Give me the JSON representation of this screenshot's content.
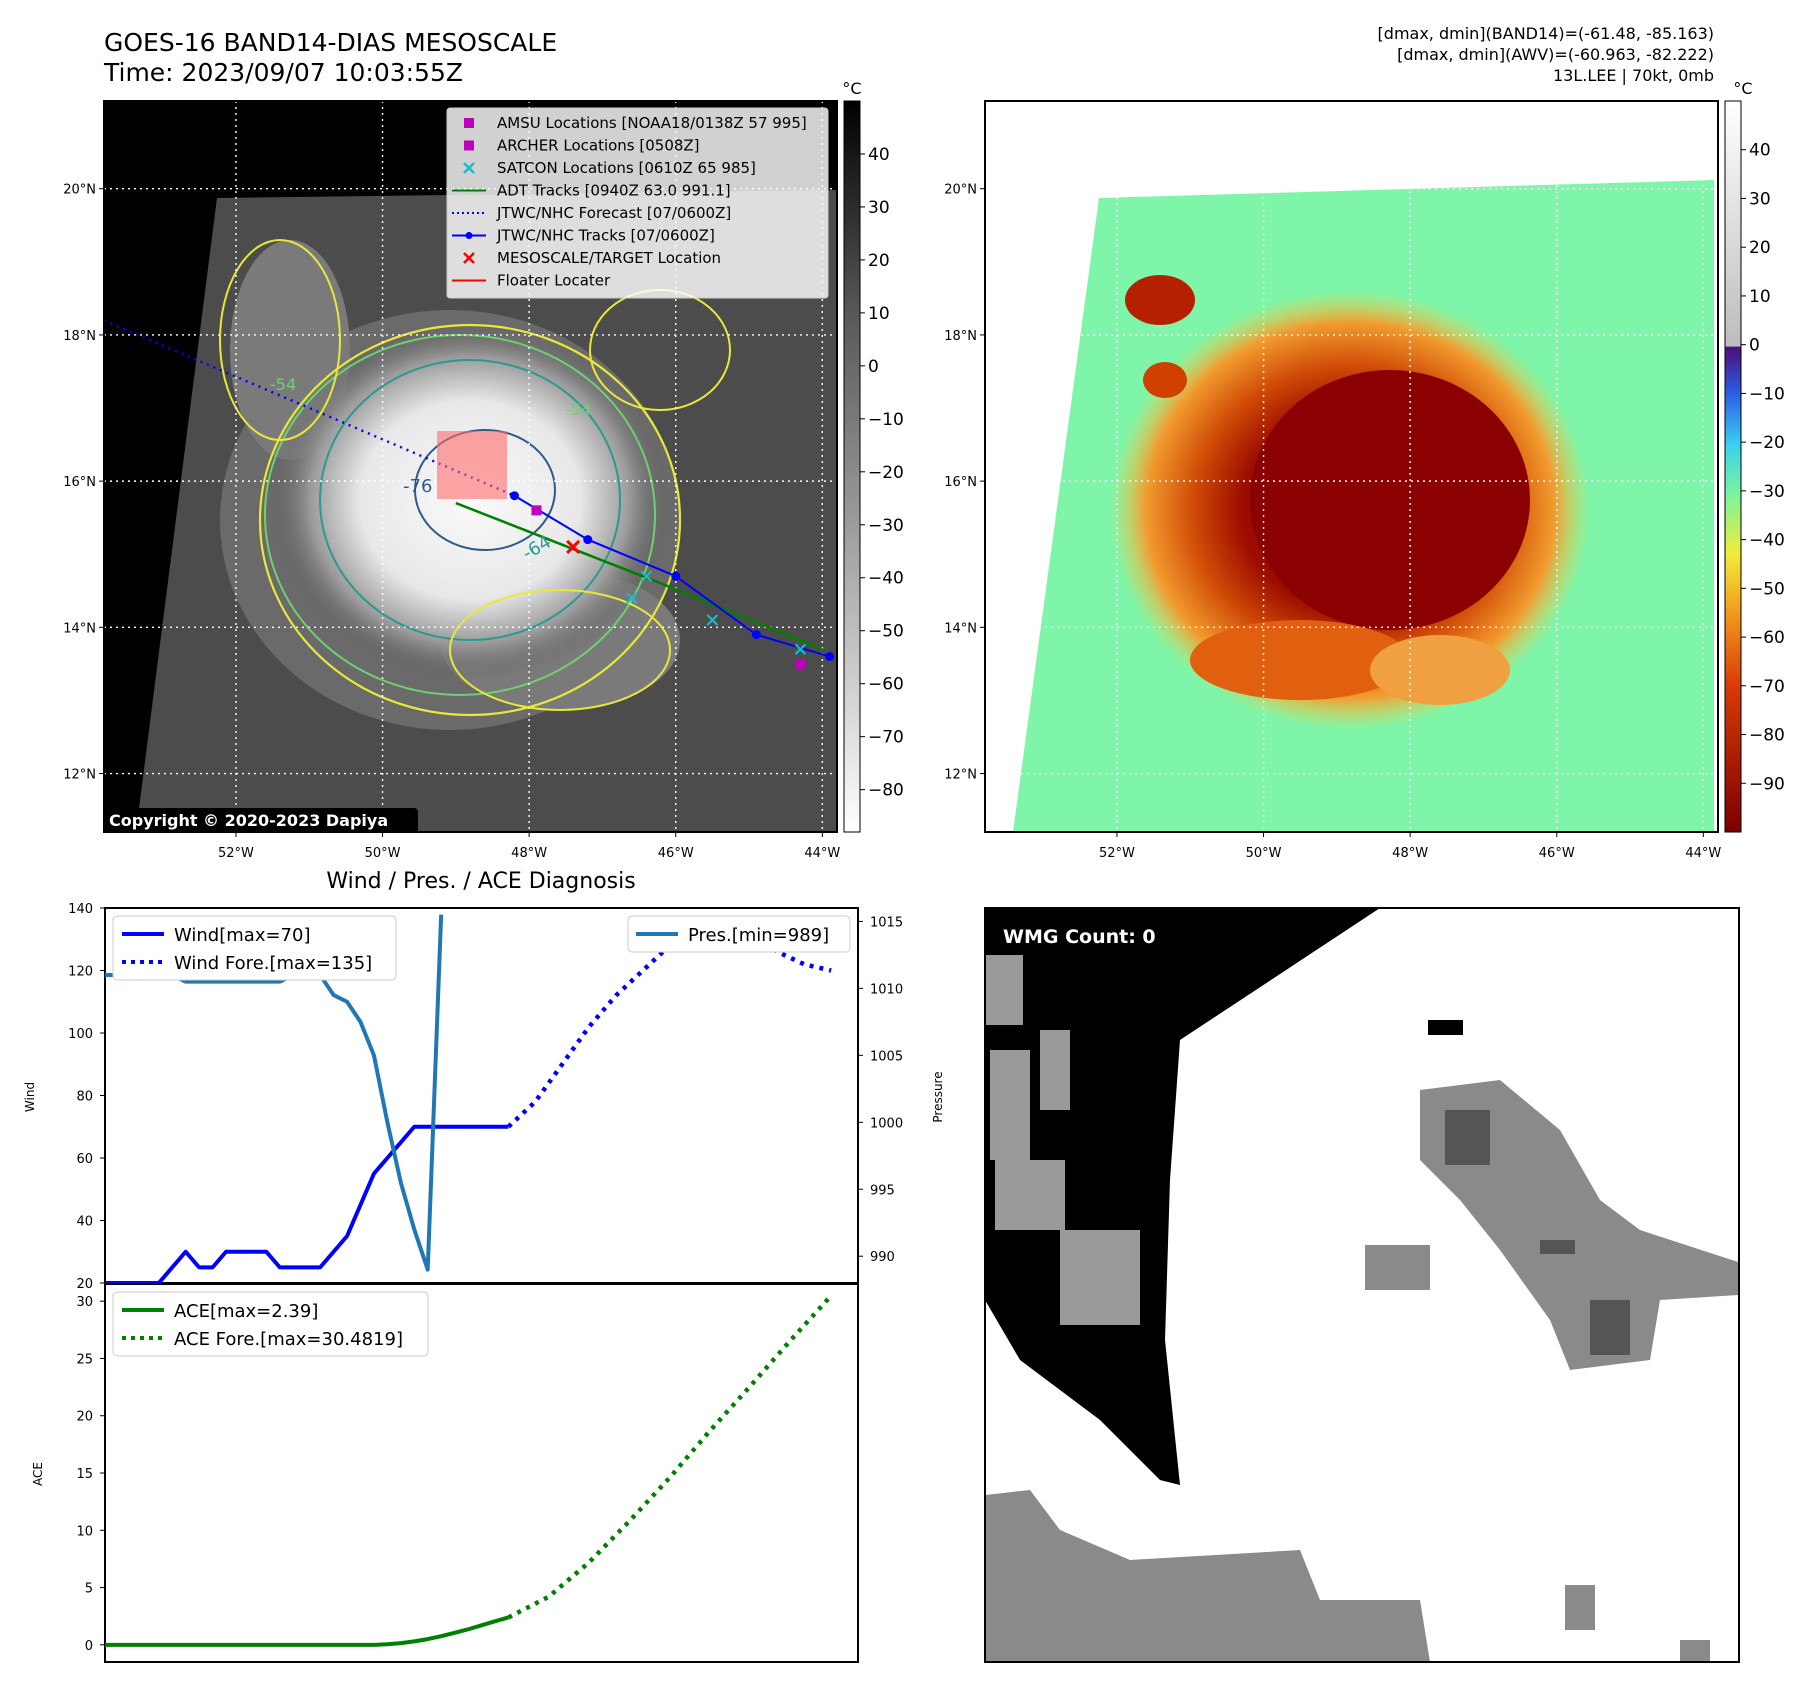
{
  "header": {
    "title": "GOES-16 BAND14-DIAS MESOSCALE",
    "time": "Time: 2023/09/07 10:03:55Z",
    "stats_band14": "[dmax, dmin](BAND14)=(-61.48, -85.163)",
    "stats_awv": "[dmax, dmin](AWV)=(-60.963, -82.222)",
    "storm": "13L.LEE | 70kt, 0mb",
    "copyright": "Copyright © 2020-2023 Dapiya"
  },
  "map": {
    "lon_labels": [
      "52°W",
      "50°W",
      "48°W",
      "46°W",
      "44°W"
    ],
    "lon_values": [
      -52,
      -50,
      -48,
      -46,
      -44
    ],
    "lat_labels": [
      "20°N",
      "18°N",
      "16°N",
      "14°N",
      "12°N"
    ],
    "lat_values": [
      20,
      18,
      16,
      14,
      12
    ],
    "extent": {
      "lon": [
        -53.8,
        -43.8
      ],
      "lat": [
        11.2,
        21.2
      ]
    },
    "contour_labels": [
      "-76",
      "-64",
      "-54",
      "-54"
    ],
    "legend": [
      {
        "label": "AMSU Locations [NOAA18/0138Z 57 995]",
        "color": "#bf00bf",
        "marker": "square"
      },
      {
        "label": "ARCHER Locations [0508Z]",
        "color": "#bf00bf",
        "marker": "square"
      },
      {
        "label": "SATCON Locations [0610Z 65 985]",
        "color": "#17becf",
        "marker": "x"
      },
      {
        "label": "ADT Tracks [0940Z 63.0 991.1]",
        "color": "#008000",
        "marker": "line"
      },
      {
        "label": "JTWC/NHC Forecast [07/0600Z]",
        "color": "#0000ff",
        "marker": "dotted"
      },
      {
        "label": "JTWC/NHC Tracks [07/0600Z]",
        "color": "#0000ff",
        "marker": "line-dot"
      },
      {
        "label": "MESOSCALE/TARGET Location",
        "color": "#ff0000",
        "marker": "x"
      },
      {
        "label": "Floater Locater",
        "color": "#ff0000",
        "marker": "line"
      }
    ],
    "forecast_track": [
      [
        -53.8,
        18.2
      ],
      [
        -48.2,
        15.8
      ]
    ],
    "jtwc_track": [
      [
        -48.2,
        15.8
      ],
      [
        -47.2,
        15.2
      ],
      [
        -46.0,
        14.7
      ],
      [
        -44.9,
        13.9
      ],
      [
        -43.9,
        13.6
      ]
    ],
    "adt_track": [
      [
        -49.0,
        15.7
      ],
      [
        -46.2,
        14.6
      ],
      [
        -44.0,
        13.7
      ]
    ],
    "satcon_points": [
      [
        -46.6,
        14.4
      ],
      [
        -46.4,
        14.7
      ],
      [
        -45.5,
        14.1
      ],
      [
        -44.3,
        13.7
      ]
    ],
    "target_point": [
      -47.4,
      15.1
    ],
    "amsu_point": [
      -47.9,
      15.6
    ],
    "archer_point": [
      -44.3,
      13.5
    ]
  },
  "colorbar_left": {
    "unit": "°C",
    "ticks": [
      "40",
      "30",
      "20",
      "10",
      "0",
      "−10",
      "−20",
      "−30",
      "−40",
      "−50",
      "−60",
      "−70",
      "−80"
    ],
    "range": [
      -88,
      50
    ]
  },
  "colorbar_right": {
    "unit": "°C",
    "ticks": [
      "40",
      "30",
      "20",
      "10",
      "0",
      "−10",
      "−20",
      "−30",
      "−40",
      "−50",
      "−60",
      "−70",
      "−80",
      "−90"
    ],
    "range": [
      -100,
      50
    ]
  },
  "wmg": {
    "label": "WMG Count: 0"
  },
  "chart_data": [
    {
      "type": "line",
      "title": "Wind / Pres. / ACE Diagnosis",
      "ylabel": "Wind",
      "ylabel_right": "Pressure",
      "ylim": [
        20,
        140
      ],
      "yticks": [
        "140",
        "120",
        "100",
        "80",
        "60",
        "40",
        "20"
      ],
      "ytick_values": [
        140,
        120,
        100,
        80,
        60,
        40,
        20
      ],
      "ylim_right": [
        988,
        1016
      ],
      "yticks_right": [
        "1015",
        "1010",
        "1005",
        "1000",
        "995",
        "990"
      ],
      "ytick_right_values": [
        1015,
        1010,
        1005,
        1000,
        995,
        990
      ],
      "xlim": [
        0,
        56
      ],
      "series": [
        {
          "name": "Wind[max=70]",
          "color": "#0000ff",
          "style": "solid",
          "x": [
            0,
            4,
            6,
            7,
            8,
            9,
            10,
            11,
            12,
            13,
            14,
            15,
            16,
            17,
            18,
            19,
            20,
            21,
            22,
            23,
            24,
            25,
            26,
            27,
            28,
            29,
            30
          ],
          "values": [
            20,
            20,
            30,
            25,
            25,
            30,
            30,
            30,
            30,
            25,
            25,
            25,
            25,
            30,
            35,
            45,
            55,
            60,
            65,
            70,
            70,
            70,
            70,
            70,
            70,
            70,
            70
          ]
        },
        {
          "name": "Wind Fore.[max=135]",
          "color": "#0000ff",
          "style": "dotted",
          "x": [
            30,
            32,
            34,
            36,
            38,
            40,
            42,
            44,
            46,
            48,
            50,
            52,
            54
          ],
          "values": [
            70,
            78,
            90,
            102,
            112,
            120,
            128,
            134,
            135,
            132,
            126,
            122,
            120
          ]
        },
        {
          "name": "Pres.[min=989]",
          "color": "#1f77b4",
          "style": "solid",
          "axis": "right",
          "x": [
            0,
            4,
            5,
            6,
            7,
            8,
            9,
            10,
            11,
            12,
            13,
            14,
            15,
            16,
            17,
            18,
            19,
            20,
            21,
            22,
            23,
            24,
            25
          ],
          "values": [
            1011,
            1011,
            1011,
            1010.5,
            1010.5,
            1010.5,
            1010.5,
            1010.5,
            1010.5,
            1010.5,
            1010.5,
            1011,
            1011,
            1011,
            1009.5,
            1009,
            1007.5,
            1005,
            1000,
            995.5,
            992,
            989,
            1015.5
          ]
        }
      ]
    },
    {
      "type": "line",
      "ylabel": "ACE",
      "ylim": [
        -1.5,
        31.5
      ],
      "yticks": [
        "30",
        "25",
        "20",
        "15",
        "10",
        "5",
        "0"
      ],
      "ytick_values": [
        30,
        25,
        20,
        15,
        10,
        5,
        0
      ],
      "xlim": [
        0,
        56
      ],
      "series": [
        {
          "name": "ACE[max=2.39]",
          "color": "#008000",
          "style": "solid",
          "x": [
            0,
            5,
            10,
            15,
            20,
            21,
            22,
            23,
            24,
            25,
            26,
            27,
            28,
            29,
            30
          ],
          "values": [
            0,
            0,
            0,
            0,
            0,
            0.05,
            0.15,
            0.3,
            0.5,
            0.75,
            1.05,
            1.35,
            1.7,
            2.05,
            2.39
          ]
        },
        {
          "name": "ACE Fore.[max=30.4819]",
          "color": "#008000",
          "style": "dotted",
          "x": [
            30,
            33,
            36,
            39,
            42,
            45,
            48,
            51,
            54
          ],
          "values": [
            2.39,
            4.2,
            7.2,
            10.8,
            14.6,
            18.7,
            22.6,
            26.6,
            30.48
          ]
        }
      ]
    }
  ]
}
